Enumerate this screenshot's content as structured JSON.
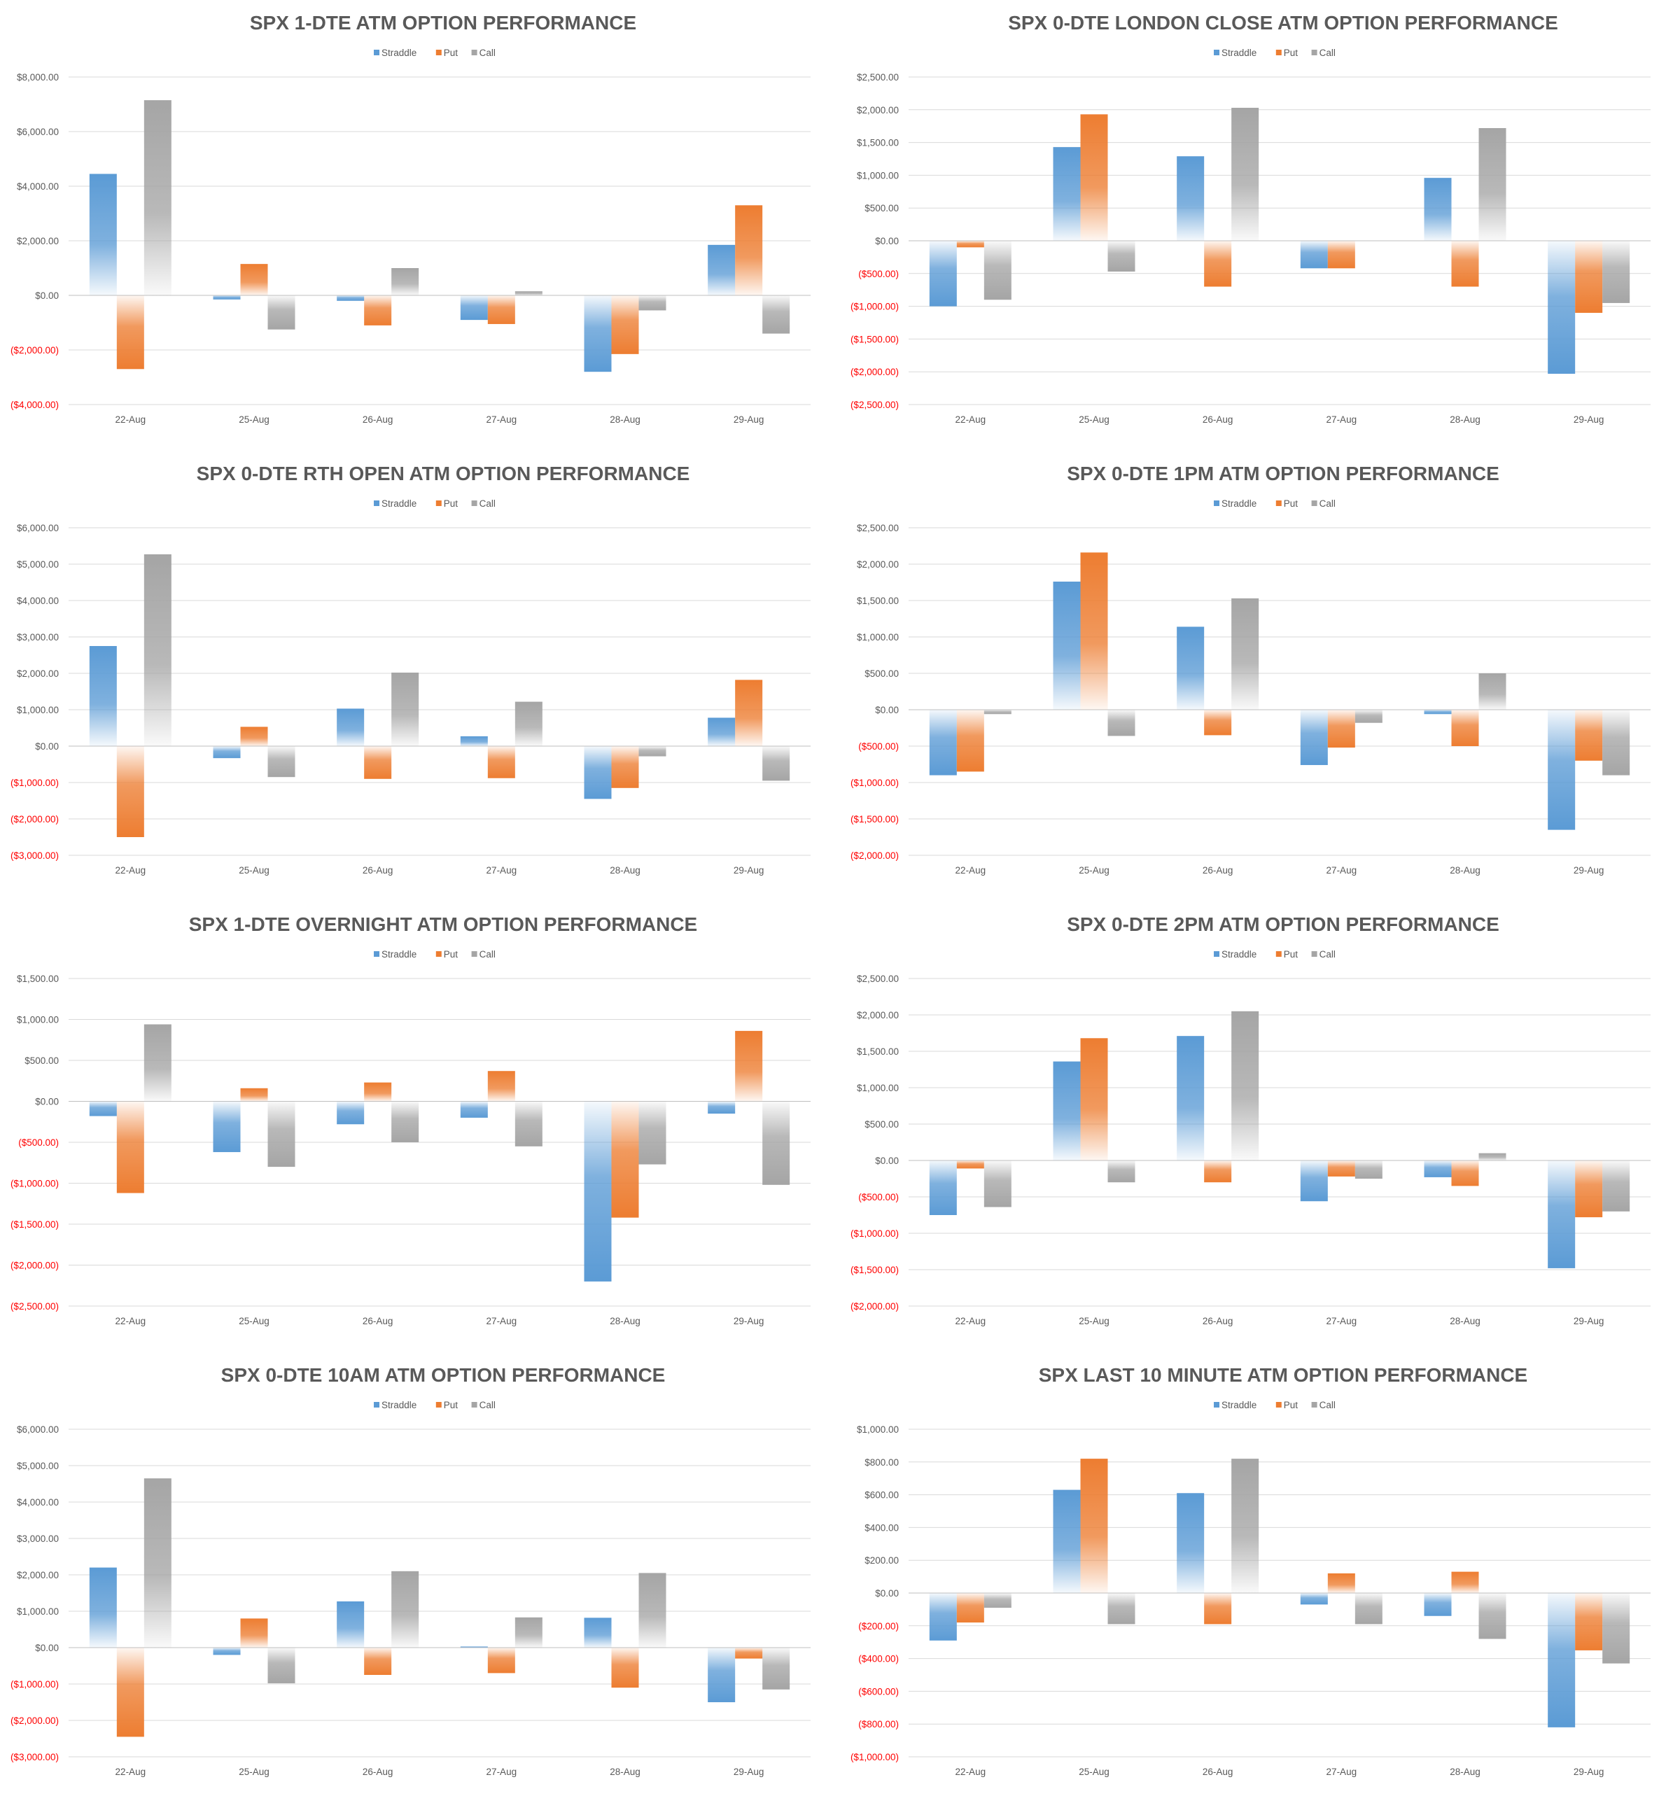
{
  "series_colors": {
    "Straddle": "#5b9bd5",
    "Put": "#ed7d31",
    "Call": "#a5a5a5"
  },
  "negative_tick_color": "#ff0000",
  "positive_tick_color": "#595959",
  "chart_data": [
    {
      "type": "bar",
      "title": "SPX 1-DTE ATM OPTION PERFORMANCE",
      "categories": [
        "22-Aug",
        "25-Aug",
        "26-Aug",
        "27-Aug",
        "28-Aug",
        "29-Aug"
      ],
      "series": [
        {
          "name": "Straddle",
          "values": [
            4450,
            -150,
            -200,
            -900,
            -2800,
            1850
          ]
        },
        {
          "name": "Put",
          "values": [
            -2700,
            1150,
            -1100,
            -1050,
            -2150,
            3300
          ]
        },
        {
          "name": "Call",
          "values": [
            7150,
            -1250,
            1000,
            150,
            -550,
            -1400
          ]
        }
      ],
      "ylim": [
        -4000,
        8000
      ],
      "yticks": [
        8000,
        6000,
        4000,
        2000,
        0,
        -2000,
        -4000
      ],
      "ytick_labels": [
        "$8,000.00",
        "$6,000.00",
        "$4,000.00",
        "$2,000.00",
        "$0.00",
        "($2,000.00)",
        "($4,000.00)"
      ],
      "legend": "top-center"
    },
    {
      "type": "bar",
      "title": "SPX 0-DTE  LONDON CLOSE ATM OPTION PERFORMANCE",
      "categories": [
        "22-Aug",
        "25-Aug",
        "26-Aug",
        "27-Aug",
        "28-Aug",
        "29-Aug"
      ],
      "series": [
        {
          "name": "Straddle",
          "values": [
            -1000,
            1430,
            1290,
            -420,
            960,
            -2030
          ]
        },
        {
          "name": "Put",
          "values": [
            -100,
            1930,
            -700,
            -420,
            -700,
            -1100
          ]
        },
        {
          "name": "Call",
          "values": [
            -900,
            -470,
            2030,
            0,
            1720,
            -950
          ]
        }
      ],
      "ylim": [
        -2500,
        2500
      ],
      "yticks": [
        2500,
        2000,
        1500,
        1000,
        500,
        0,
        -500,
        -1000,
        -1500,
        -2000,
        -2500
      ],
      "ytick_labels": [
        "$2,500.00",
        "$2,000.00",
        "$1,500.00",
        "$1,000.00",
        "$500.00",
        "$0.00",
        "($500.00)",
        "($1,000.00)",
        "($1,500.00)",
        "($2,000.00)",
        "($2,500.00)"
      ],
      "legend": "top-center"
    },
    {
      "type": "bar",
      "title": "SPX 0-DTE RTH OPEN ATM OPTION PERFORMANCE",
      "categories": [
        "22-Aug",
        "25-Aug",
        "26-Aug",
        "27-Aug",
        "28-Aug",
        "29-Aug"
      ],
      "series": [
        {
          "name": "Straddle",
          "values": [
            2750,
            -330,
            1030,
            270,
            -1450,
            780
          ]
        },
        {
          "name": "Put",
          "values": [
            -2500,
            530,
            -900,
            -880,
            -1150,
            1820
          ]
        },
        {
          "name": "Call",
          "values": [
            5270,
            -850,
            2020,
            1220,
            -280,
            -950
          ]
        }
      ],
      "ylim": [
        -3000,
        6000
      ],
      "yticks": [
        6000,
        5000,
        4000,
        3000,
        2000,
        1000,
        0,
        -1000,
        -2000,
        -3000
      ],
      "ytick_labels": [
        "$6,000.00",
        "$5,000.00",
        "$4,000.00",
        "$3,000.00",
        "$2,000.00",
        "$1,000.00",
        "$0.00",
        "($1,000.00)",
        "($2,000.00)",
        "($3,000.00)"
      ],
      "legend": "top-center"
    },
    {
      "type": "bar",
      "title": "SPX 0-DTE 1PM ATM OPTION PERFORMANCE",
      "categories": [
        "22-Aug",
        "25-Aug",
        "26-Aug",
        "27-Aug",
        "28-Aug",
        "29-Aug"
      ],
      "series": [
        {
          "name": "Straddle",
          "values": [
            -900,
            1760,
            1140,
            -760,
            -60,
            -1650
          ]
        },
        {
          "name": "Put",
          "values": [
            -850,
            2160,
            -350,
            -520,
            -500,
            -700
          ]
        },
        {
          "name": "Call",
          "values": [
            -60,
            -360,
            1530,
            -180,
            500,
            -900
          ]
        }
      ],
      "ylim": [
        -2000,
        2500
      ],
      "yticks": [
        2500,
        2000,
        1500,
        1000,
        500,
        0,
        -500,
        -1000,
        -1500,
        -2000
      ],
      "ytick_labels": [
        "$2,500.00",
        "$2,000.00",
        "$1,500.00",
        "$1,000.00",
        "$500.00",
        "$0.00",
        "($500.00)",
        "($1,000.00)",
        "($1,500.00)",
        "($2,000.00)"
      ],
      "legend": "top-center"
    },
    {
      "type": "bar",
      "title": "SPX 1-DTE OVERNIGHT ATM OPTION PERFORMANCE",
      "categories": [
        "22-Aug",
        "25-Aug",
        "26-Aug",
        "27-Aug",
        "28-Aug",
        "29-Aug"
      ],
      "series": [
        {
          "name": "Straddle",
          "values": [
            -180,
            -620,
            -280,
            -200,
            -2200,
            -150
          ]
        },
        {
          "name": "Put",
          "values": [
            -1120,
            160,
            230,
            370,
            -1420,
            860
          ]
        },
        {
          "name": "Call",
          "values": [
            940,
            -800,
            -500,
            -550,
            -770,
            -1020
          ]
        }
      ],
      "ylim": [
        -2500,
        1500
      ],
      "yticks": [
        1500,
        1000,
        500,
        0,
        -500,
        -1000,
        -1500,
        -2000,
        -2500
      ],
      "ytick_labels": [
        "$1,500.00",
        "$1,000.00",
        "$500.00",
        "$0.00",
        "($500.00)",
        "($1,000.00)",
        "($1,500.00)",
        "($2,000.00)",
        "($2,500.00)"
      ],
      "legend": "top-center"
    },
    {
      "type": "bar",
      "title": "SPX 0-DTE 2PM ATM OPTION PERFORMANCE",
      "categories": [
        "22-Aug",
        "25-Aug",
        "26-Aug",
        "27-Aug",
        "28-Aug",
        "29-Aug"
      ],
      "series": [
        {
          "name": "Straddle",
          "values": [
            -750,
            1360,
            1710,
            -560,
            -230,
            -1480
          ]
        },
        {
          "name": "Put",
          "values": [
            -110,
            1680,
            -300,
            -220,
            -350,
            -780
          ]
        },
        {
          "name": "Call",
          "values": [
            -640,
            -300,
            2050,
            -250,
            100,
            -700
          ]
        }
      ],
      "ylim": [
        -2000,
        2500
      ],
      "yticks": [
        2500,
        2000,
        1500,
        1000,
        500,
        0,
        -500,
        -1000,
        -1500,
        -2000
      ],
      "ytick_labels": [
        "$2,500.00",
        "$2,000.00",
        "$1,500.00",
        "$1,000.00",
        "$500.00",
        "$0.00",
        "($500.00)",
        "($1,000.00)",
        "($1,500.00)",
        "($2,000.00)"
      ],
      "legend": "top-center"
    },
    {
      "type": "bar",
      "title": "SPX 0-DTE 10AM ATM OPTION PERFORMANCE",
      "categories": [
        "22-Aug",
        "25-Aug",
        "26-Aug",
        "27-Aug",
        "28-Aug",
        "29-Aug"
      ],
      "series": [
        {
          "name": "Straddle",
          "values": [
            2200,
            -200,
            1270,
            30,
            820,
            -1500
          ]
        },
        {
          "name": "Put",
          "values": [
            -2450,
            800,
            -750,
            -700,
            -1100,
            -300
          ]
        },
        {
          "name": "Call",
          "values": [
            4650,
            -980,
            2100,
            830,
            2050,
            -1150
          ]
        }
      ],
      "ylim": [
        -3000,
        6000
      ],
      "yticks": [
        6000,
        5000,
        4000,
        3000,
        2000,
        1000,
        0,
        -1000,
        -2000,
        -3000
      ],
      "ytick_labels": [
        "$6,000.00",
        "$5,000.00",
        "$4,000.00",
        "$3,000.00",
        "$2,000.00",
        "$1,000.00",
        "$0.00",
        "($1,000.00)",
        "($2,000.00)",
        "($3,000.00)"
      ],
      "legend": "top-center"
    },
    {
      "type": "bar",
      "title": "SPX LAST 10 MINUTE ATM OPTION PERFORMANCE",
      "categories": [
        "22-Aug",
        "25-Aug",
        "26-Aug",
        "27-Aug",
        "28-Aug",
        "29-Aug"
      ],
      "series": [
        {
          "name": "Straddle",
          "values": [
            -290,
            630,
            610,
            -70,
            -140,
            -820
          ]
        },
        {
          "name": "Put",
          "values": [
            -180,
            820,
            -190,
            120,
            130,
            -350
          ]
        },
        {
          "name": "Call",
          "values": [
            -90,
            -190,
            820,
            -190,
            -280,
            -430
          ]
        }
      ],
      "ylim": [
        -1000,
        1000
      ],
      "yticks": [
        1000,
        800,
        600,
        400,
        200,
        0,
        -200,
        -400,
        -600,
        -800,
        -1000
      ],
      "ytick_labels": [
        "$1,000.00",
        "$800.00",
        "$600.00",
        "$400.00",
        "$200.00",
        "$0.00",
        "($200.00)",
        "($400.00)",
        "($600.00)",
        "($800.00)",
        "($1,000.00)"
      ],
      "legend": "top-center"
    }
  ]
}
